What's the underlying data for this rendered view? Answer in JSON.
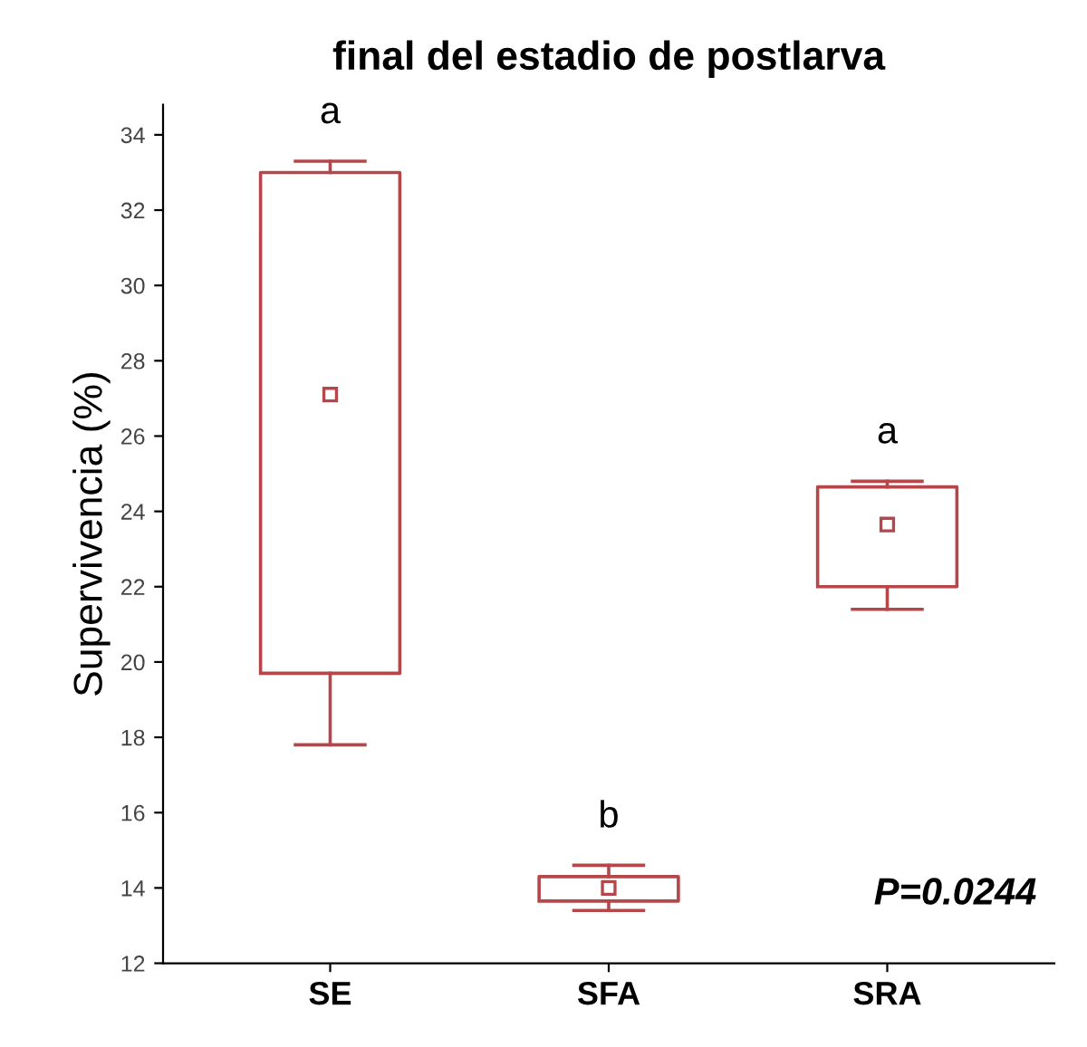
{
  "chart_data": {
    "type": "box",
    "title": "final del estadio de postlarva",
    "ylabel": "Supervivencia (%)",
    "categories": [
      "SE",
      "SFA",
      "SRA"
    ],
    "boxes": [
      {
        "low": 17.8,
        "q1": 19.7,
        "median": 27.1,
        "q3": 33.0,
        "high": 33.3
      },
      {
        "low": 13.4,
        "q1": 13.65,
        "median": 14.0,
        "q3": 14.3,
        "high": 14.6
      },
      {
        "low": 21.4,
        "q1": 22.0,
        "median": 23.65,
        "q3": 24.65,
        "high": 24.8
      }
    ],
    "color": "#b5474b",
    "marker": "square",
    "ylim": [
      12,
      34.8
    ],
    "yticks": [
      12,
      14,
      16,
      18,
      20,
      22,
      24,
      26,
      28,
      30,
      32,
      34
    ],
    "grid": false,
    "annotations": [
      {
        "text": "a",
        "x": "SE",
        "y": 33.3
      },
      {
        "text": "b",
        "x": "SFA",
        "y": 14.6
      },
      {
        "text": "a",
        "x": "SRA",
        "y": 24.8
      },
      "P=0.0244"
    ]
  }
}
